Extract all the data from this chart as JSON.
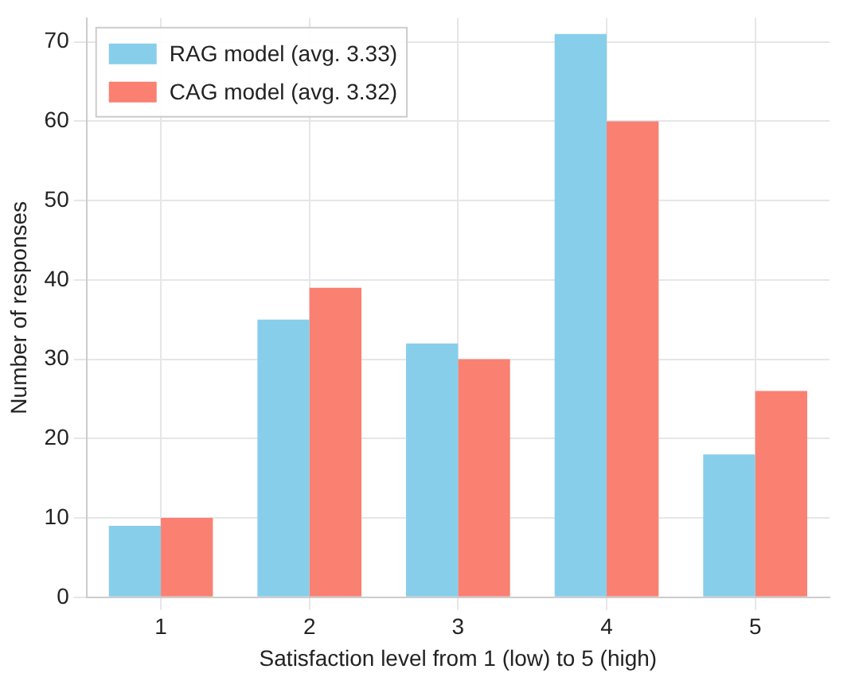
{
  "chart_data": {
    "type": "bar",
    "xlabel": "Satisfaction level from 1 (low) to 5 (high)",
    "ylabel": "Number of responses",
    "categories": [
      "1",
      "2",
      "3",
      "4",
      "5"
    ],
    "series": [
      {
        "name": "RAG model (avg. 3.33)",
        "color": "#87ceeb",
        "values": [
          9,
          35,
          32,
          71,
          18
        ]
      },
      {
        "name": "CAG model (avg. 3.32)",
        "color": "#fa8072",
        "values": [
          10,
          39,
          30,
          60,
          26
        ]
      }
    ],
    "ylim": [
      0,
      73
    ],
    "yticks": [
      0,
      10,
      20,
      30,
      40,
      50,
      60,
      70
    ],
    "grid": true,
    "legend": "top left"
  }
}
